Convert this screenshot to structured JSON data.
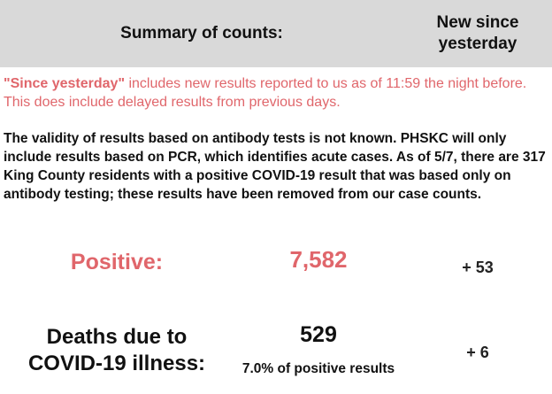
{
  "header": {
    "title": "Summary of counts:",
    "new_line1": "New since",
    "new_line2": "yesterday"
  },
  "note": {
    "highlight": "\"Since yesterday\"",
    "text": " includes new results reported to us as of 11:59 the night before. This does include delayed results from previous days."
  },
  "validity_text": "The validity of results based on antibody tests is not known. PHSKC will only include results based on PCR, which identifies acute cases. As of 5/7, there are 317 King County residents with a positive COVID-19 result that was based only on antibody testing; these results have been removed from our case counts.",
  "positive": {
    "label": "Positive:",
    "value": "7,582",
    "new": "+ 53"
  },
  "deaths": {
    "label_line1": "Deaths due to",
    "label_line2": "COVID-19 illness:",
    "value": "529",
    "percent_text": "7.0% of positive results",
    "new": "+ 6"
  },
  "colors": {
    "header_bg": "#d9d9d9",
    "accent_red": "#e0666b"
  }
}
